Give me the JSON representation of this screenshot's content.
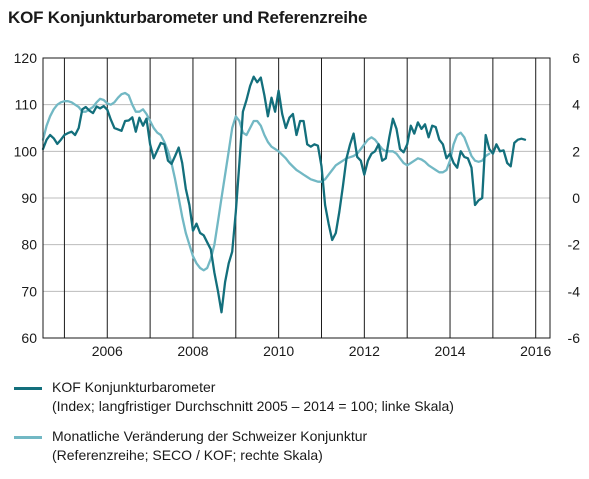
{
  "title": "KOF Konjunkturbarometer und Referenzreihe",
  "legend": [
    {
      "line1": "KOF Konjunkturbarometer",
      "line2": "(Index; langfristiger Durchschnitt 2005 – 2014 = 100; linke Skala)",
      "color": "#136f7c"
    },
    {
      "line1": "Monatliche Veränderung der Schweizer Konjunktur",
      "line2": "(Referenzreihe; SECO / KOF; rechte Skala)",
      "color": "#72b8c4"
    }
  ],
  "chart_data": {
    "type": "line",
    "x_range": [
      "2004-07",
      "2016-05"
    ],
    "x_tick_labels": [
      "2006",
      "2008",
      "2010",
      "2012",
      "2014",
      "2016"
    ],
    "y_left": {
      "min": 60,
      "max": 120,
      "ticks": [
        60,
        70,
        80,
        90,
        100,
        110,
        120
      ]
    },
    "y_right": {
      "min": -6,
      "max": 6,
      "ticks": [
        -6,
        -4,
        -2,
        0,
        2,
        4,
        6
      ]
    },
    "grid": {
      "vertical_year_lines": true,
      "horizontal_lines": true
    },
    "series": [
      {
        "name": "KOF Konjunturbarometer",
        "axis": "left",
        "color": "#136f7c",
        "points": [
          [
            "2004-07",
            100.5
          ],
          [
            "2004-08",
            102.5
          ],
          [
            "2004-09",
            103.5
          ],
          [
            "2004-10",
            102.8
          ],
          [
            "2004-11",
            101.6
          ],
          [
            "2004-12",
            102.5
          ],
          [
            "2005-01",
            103.5
          ],
          [
            "2005-02",
            103.9
          ],
          [
            "2005-03",
            104.2
          ],
          [
            "2005-04",
            103.5
          ],
          [
            "2005-05",
            105.0
          ],
          [
            "2005-06",
            109.0
          ],
          [
            "2005-07",
            109.5
          ],
          [
            "2005-08",
            108.7
          ],
          [
            "2005-09",
            108.2
          ],
          [
            "2005-10",
            109.6
          ],
          [
            "2005-11",
            109.2
          ],
          [
            "2005-12",
            109.7
          ],
          [
            "2006-01",
            108.9
          ],
          [
            "2006-02",
            106.8
          ],
          [
            "2006-03",
            105.0
          ],
          [
            "2006-04",
            104.7
          ],
          [
            "2006-05",
            104.4
          ],
          [
            "2006-06",
            106.5
          ],
          [
            "2006-07",
            106.6
          ],
          [
            "2006-08",
            107.3
          ],
          [
            "2006-09",
            104.2
          ],
          [
            "2006-10",
            107.2
          ],
          [
            "2006-11",
            105.5
          ],
          [
            "2006-12",
            107.0
          ],
          [
            "2007-01",
            101.5
          ],
          [
            "2007-02",
            98.5
          ],
          [
            "2007-03",
            100.2
          ],
          [
            "2007-04",
            101.8
          ],
          [
            "2007-05",
            101.5
          ],
          [
            "2007-06",
            98.0
          ],
          [
            "2007-07",
            97.3
          ],
          [
            "2007-08",
            99.0
          ],
          [
            "2007-09",
            100.8
          ],
          [
            "2007-10",
            97.5
          ],
          [
            "2007-11",
            92.0
          ],
          [
            "2007-12",
            88.5
          ],
          [
            "2008-01",
            83.0
          ],
          [
            "2008-02",
            84.5
          ],
          [
            "2008-03",
            82.5
          ],
          [
            "2008-04",
            82.0
          ],
          [
            "2008-05",
            80.5
          ],
          [
            "2008-06",
            79.0
          ],
          [
            "2008-07",
            74.0
          ],
          [
            "2008-08",
            70.0
          ],
          [
            "2008-09",
            65.5
          ],
          [
            "2008-10",
            72.0
          ],
          [
            "2008-11",
            76.0
          ],
          [
            "2008-12",
            78.5
          ],
          [
            "2009-01",
            87.0
          ],
          [
            "2009-02",
            97.5
          ],
          [
            "2009-03",
            108.5
          ],
          [
            "2009-04",
            111.0
          ],
          [
            "2009-05",
            114.0
          ],
          [
            "2009-06",
            116.0
          ],
          [
            "2009-07",
            114.8
          ],
          [
            "2009-08",
            115.8
          ],
          [
            "2009-09",
            112.0
          ],
          [
            "2009-10",
            107.5
          ],
          [
            "2009-11",
            111.5
          ],
          [
            "2009-12",
            108.5
          ],
          [
            "2010-01",
            113.0
          ],
          [
            "2010-02",
            108.0
          ],
          [
            "2010-03",
            105.0
          ],
          [
            "2010-04",
            107.2
          ],
          [
            "2010-05",
            108.0
          ],
          [
            "2010-06",
            103.5
          ],
          [
            "2010-07",
            106.5
          ],
          [
            "2010-08",
            106.5
          ],
          [
            "2010-09",
            101.5
          ],
          [
            "2010-10",
            101.0
          ],
          [
            "2010-11",
            101.5
          ],
          [
            "2010-12",
            101.2
          ],
          [
            "2011-01",
            96.8
          ],
          [
            "2011-02",
            88.5
          ],
          [
            "2011-03",
            84.5
          ],
          [
            "2011-04",
            81.0
          ],
          [
            "2011-05",
            82.5
          ],
          [
            "2011-06",
            87.0
          ],
          [
            "2011-07",
            92.5
          ],
          [
            "2011-08",
            98.5
          ],
          [
            "2011-09",
            101.5
          ],
          [
            "2011-10",
            103.8
          ],
          [
            "2011-11",
            98.8
          ],
          [
            "2011-12",
            98.0
          ],
          [
            "2012-01",
            95.0
          ],
          [
            "2012-02",
            98.0
          ],
          [
            "2012-03",
            99.5
          ],
          [
            "2012-04",
            100.0
          ],
          [
            "2012-05",
            101.5
          ],
          [
            "2012-06",
            98.0
          ],
          [
            "2012-07",
            98.5
          ],
          [
            "2012-08",
            103.0
          ],
          [
            "2012-09",
            107.0
          ],
          [
            "2012-10",
            104.8
          ],
          [
            "2012-11",
            100.5
          ],
          [
            "2012-12",
            99.8
          ],
          [
            "2013-01",
            101.5
          ],
          [
            "2013-02",
            105.5
          ],
          [
            "2013-03",
            103.8
          ],
          [
            "2013-04",
            106.2
          ],
          [
            "2013-05",
            104.8
          ],
          [
            "2013-06",
            105.8
          ],
          [
            "2013-07",
            103.0
          ],
          [
            "2013-08",
            105.5
          ],
          [
            "2013-09",
            105.2
          ],
          [
            "2013-10",
            102.5
          ],
          [
            "2013-11",
            101.5
          ],
          [
            "2013-12",
            98.5
          ],
          [
            "2014-01",
            99.5
          ],
          [
            "2014-02",
            97.5
          ],
          [
            "2014-03",
            96.5
          ],
          [
            "2014-04",
            100.0
          ],
          [
            "2014-05",
            98.8
          ],
          [
            "2014-06",
            98.5
          ],
          [
            "2014-07",
            96.5
          ],
          [
            "2014-08",
            88.5
          ],
          [
            "2014-09",
            89.5
          ],
          [
            "2014-10",
            90.0
          ],
          [
            "2014-11",
            103.5
          ],
          [
            "2014-12",
            100.5
          ],
          [
            "2015-01",
            99.5
          ],
          [
            "2015-02",
            101.5
          ],
          [
            "2015-03",
            100.0
          ],
          [
            "2015-04",
            100.2
          ],
          [
            "2015-05",
            97.5
          ],
          [
            "2015-06",
            96.8
          ],
          [
            "2015-07",
            101.8
          ],
          [
            "2015-08",
            102.5
          ],
          [
            "2015-09",
            102.7
          ],
          [
            "2015-10",
            102.5
          ]
        ]
      },
      {
        "name": "Monatliche Veränderung der Schweizer Konjunktur",
        "axis": "right",
        "color": "#72b8c4",
        "points": [
          [
            "2004-07",
            2.5
          ],
          [
            "2004-08",
            3.1
          ],
          [
            "2004-09",
            3.5
          ],
          [
            "2004-10",
            3.8
          ],
          [
            "2004-11",
            4.0
          ],
          [
            "2004-12",
            4.1
          ],
          [
            "2005-01",
            4.15
          ],
          [
            "2005-02",
            4.15
          ],
          [
            "2005-03",
            4.1
          ],
          [
            "2005-04",
            4.0
          ],
          [
            "2005-05",
            3.9
          ],
          [
            "2005-06",
            3.7
          ],
          [
            "2005-07",
            3.7
          ],
          [
            "2005-08",
            3.8
          ],
          [
            "2005-09",
            3.9
          ],
          [
            "2005-10",
            4.1
          ],
          [
            "2005-11",
            4.25
          ],
          [
            "2005-12",
            4.2
          ],
          [
            "2006-01",
            4.05
          ],
          [
            "2006-02",
            4.0
          ],
          [
            "2006-03",
            4.1
          ],
          [
            "2006-04",
            4.3
          ],
          [
            "2006-05",
            4.45
          ],
          [
            "2006-06",
            4.5
          ],
          [
            "2006-07",
            4.4
          ],
          [
            "2006-08",
            4.0
          ],
          [
            "2006-09",
            3.7
          ],
          [
            "2006-10",
            3.7
          ],
          [
            "2006-11",
            3.8
          ],
          [
            "2006-12",
            3.6
          ],
          [
            "2007-01",
            3.3
          ],
          [
            "2007-02",
            3.0
          ],
          [
            "2007-03",
            2.8
          ],
          [
            "2007-04",
            2.7
          ],
          [
            "2007-05",
            2.4
          ],
          [
            "2007-06",
            2.0
          ],
          [
            "2007-07",
            1.5
          ],
          [
            "2007-08",
            0.8
          ],
          [
            "2007-09",
            0.0
          ],
          [
            "2007-10",
            -0.8
          ],
          [
            "2007-11",
            -1.5
          ],
          [
            "2007-12",
            -2.0
          ],
          [
            "2008-01",
            -2.5
          ],
          [
            "2008-02",
            -2.8
          ],
          [
            "2008-03",
            -3.0
          ],
          [
            "2008-04",
            -3.1
          ],
          [
            "2008-05",
            -3.0
          ],
          [
            "2008-06",
            -2.6
          ],
          [
            "2008-07",
            -2.0
          ],
          [
            "2008-08",
            -1.0
          ],
          [
            "2008-09",
            0.0
          ],
          [
            "2008-10",
            1.0
          ],
          [
            "2008-11",
            2.0
          ],
          [
            "2008-12",
            3.0
          ],
          [
            "2009-01",
            3.5
          ],
          [
            "2009-02",
            3.3
          ],
          [
            "2009-03",
            2.8
          ],
          [
            "2009-04",
            2.7
          ],
          [
            "2009-05",
            3.0
          ],
          [
            "2009-06",
            3.3
          ],
          [
            "2009-07",
            3.3
          ],
          [
            "2009-08",
            3.1
          ],
          [
            "2009-09",
            2.7
          ],
          [
            "2009-10",
            2.4
          ],
          [
            "2009-11",
            2.2
          ],
          [
            "2009-12",
            2.1
          ],
          [
            "2010-01",
            2.0
          ],
          [
            "2010-02",
            1.85
          ],
          [
            "2010-03",
            1.7
          ],
          [
            "2010-04",
            1.5
          ],
          [
            "2010-05",
            1.35
          ],
          [
            "2010-06",
            1.2
          ],
          [
            "2010-07",
            1.1
          ],
          [
            "2010-08",
            1.0
          ],
          [
            "2010-09",
            0.9
          ],
          [
            "2010-10",
            0.8
          ],
          [
            "2010-11",
            0.75
          ],
          [
            "2010-12",
            0.7
          ],
          [
            "2011-01",
            0.7
          ],
          [
            "2011-02",
            0.8
          ],
          [
            "2011-03",
            1.0
          ],
          [
            "2011-04",
            1.2
          ],
          [
            "2011-05",
            1.4
          ],
          [
            "2011-06",
            1.5
          ],
          [
            "2011-07",
            1.6
          ],
          [
            "2011-08",
            1.7
          ],
          [
            "2011-09",
            1.75
          ],
          [
            "2011-10",
            1.8
          ],
          [
            "2011-11",
            1.9
          ],
          [
            "2011-12",
            2.1
          ],
          [
            "2012-01",
            2.3
          ],
          [
            "2012-02",
            2.5
          ],
          [
            "2012-03",
            2.6
          ],
          [
            "2012-04",
            2.5
          ],
          [
            "2012-05",
            2.3
          ],
          [
            "2012-06",
            2.1
          ],
          [
            "2012-07",
            2.0
          ],
          [
            "2012-08",
            2.0
          ],
          [
            "2012-09",
            2.0
          ],
          [
            "2012-10",
            1.9
          ],
          [
            "2012-11",
            1.7
          ],
          [
            "2012-12",
            1.5
          ],
          [
            "2013-01",
            1.4
          ],
          [
            "2013-02",
            1.5
          ],
          [
            "2013-03",
            1.6
          ],
          [
            "2013-04",
            1.7
          ],
          [
            "2013-05",
            1.65
          ],
          [
            "2013-06",
            1.55
          ],
          [
            "2013-07",
            1.4
          ],
          [
            "2013-08",
            1.3
          ],
          [
            "2013-09",
            1.2
          ],
          [
            "2013-10",
            1.1
          ],
          [
            "2013-11",
            1.1
          ],
          [
            "2013-12",
            1.2
          ],
          [
            "2014-01",
            1.6
          ],
          [
            "2014-02",
            2.3
          ],
          [
            "2014-03",
            2.7
          ],
          [
            "2014-04",
            2.8
          ],
          [
            "2014-05",
            2.6
          ],
          [
            "2014-06",
            2.2
          ],
          [
            "2014-07",
            1.8
          ],
          [
            "2014-08",
            1.6
          ],
          [
            "2014-09",
            1.55
          ],
          [
            "2014-10",
            1.6
          ],
          [
            "2014-11",
            1.8
          ],
          [
            "2014-12",
            1.9
          ]
        ]
      }
    ]
  }
}
